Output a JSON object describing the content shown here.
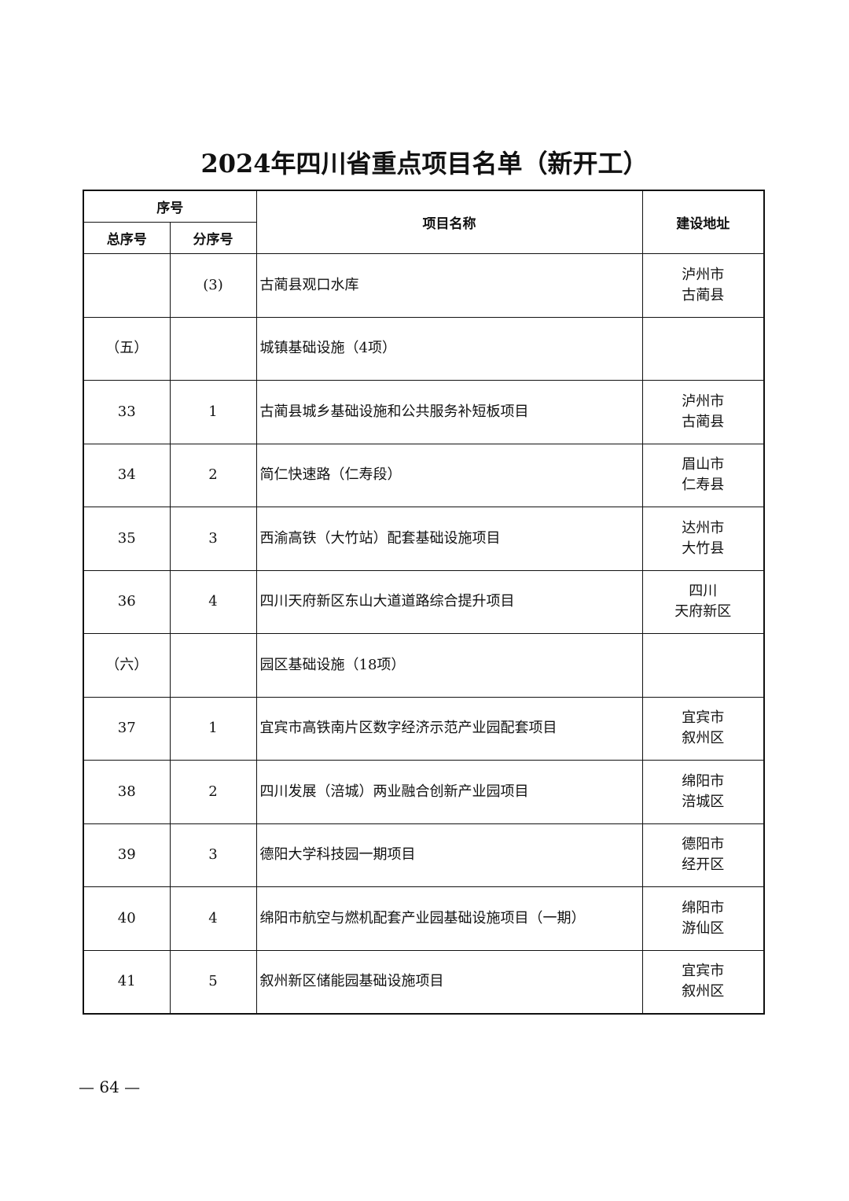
{
  "title": "2024年四川省重点项目名单（新开工）",
  "headers": {
    "seq": "序号",
    "total_seq": "总序号",
    "sub_seq": "分序号",
    "name": "项目名称",
    "location": "建设地址"
  },
  "rows": [
    {
      "total": "",
      "sub": "(3)",
      "name": "古蔺县观口水库",
      "loc1": "泸州市",
      "loc2": "古蔺县"
    },
    {
      "total": "（五）",
      "sub": "",
      "name": "城镇基础设施（4项）",
      "loc1": "",
      "loc2": ""
    },
    {
      "total": "33",
      "sub": "1",
      "name": "古蔺县城乡基础设施和公共服务补短板项目",
      "loc1": "泸州市",
      "loc2": "古蔺县"
    },
    {
      "total": "34",
      "sub": "2",
      "name": "简仁快速路（仁寿段）",
      "loc1": "眉山市",
      "loc2": "仁寿县"
    },
    {
      "total": "35",
      "sub": "3",
      "name": "西渝高铁（大竹站）配套基础设施项目",
      "loc1": "达州市",
      "loc2": "大竹县"
    },
    {
      "total": "36",
      "sub": "4",
      "name": "四川天府新区东山大道道路综合提升项目",
      "loc1": "四川",
      "loc2": "天府新区"
    },
    {
      "total": "（六）",
      "sub": "",
      "name": "园区基础设施（18项）",
      "loc1": "",
      "loc2": ""
    },
    {
      "total": "37",
      "sub": "1",
      "name": "宜宾市高铁南片区数字经济示范产业园配套项目",
      "loc1": "宜宾市",
      "loc2": "叙州区"
    },
    {
      "total": "38",
      "sub": "2",
      "name": "四川发展（涪城）两业融合创新产业园项目",
      "loc1": "绵阳市",
      "loc2": "涪城区"
    },
    {
      "total": "39",
      "sub": "3",
      "name": "德阳大学科技园一期项目",
      "loc1": "德阳市",
      "loc2": "经开区"
    },
    {
      "total": "40",
      "sub": "4",
      "name": "绵阳市航空与燃机配套产业园基础设施项目（一期）",
      "loc1": "绵阳市",
      "loc2": "游仙区"
    },
    {
      "total": "41",
      "sub": "5",
      "name": "叙州新区储能园基础设施项目",
      "loc1": "宜宾市",
      "loc2": "叙州区"
    }
  ],
  "page_number": "— 64 —"
}
